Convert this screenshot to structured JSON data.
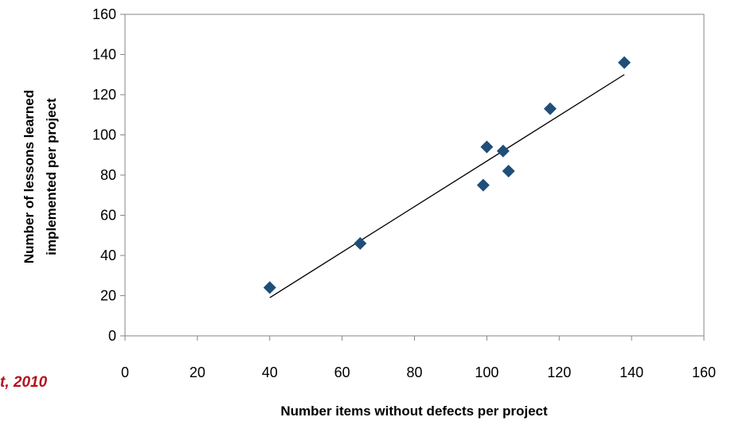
{
  "chart_data": {
    "type": "scatter",
    "title": "",
    "xlabel": "Number items without defects per project",
    "ylabel_lines": [
      "Number of lessons learned",
      "implemented per project"
    ],
    "xlim": [
      0,
      160
    ],
    "ylim": [
      0,
      160
    ],
    "xticks": [
      0,
      20,
      40,
      60,
      80,
      100,
      120,
      140,
      160
    ],
    "yticks": [
      0,
      20,
      40,
      60,
      80,
      100,
      120,
      140,
      160
    ],
    "grid": false,
    "marker": "diamond",
    "marker_color": "#1f4e79",
    "points": [
      {
        "x": 40,
        "y": 24
      },
      {
        "x": 65,
        "y": 46
      },
      {
        "x": 99,
        "y": 75
      },
      {
        "x": 100,
        "y": 94
      },
      {
        "x": 104.5,
        "y": 92
      },
      {
        "x": 106,
        "y": 82
      },
      {
        "x": 117.5,
        "y": 113
      },
      {
        "x": 138,
        "y": 136
      }
    ],
    "trendline": {
      "x": [
        40,
        138
      ],
      "y": [
        19,
        130
      ],
      "color": "#000000"
    }
  },
  "source_note": "t, 2010",
  "source_color": "#b3121f"
}
